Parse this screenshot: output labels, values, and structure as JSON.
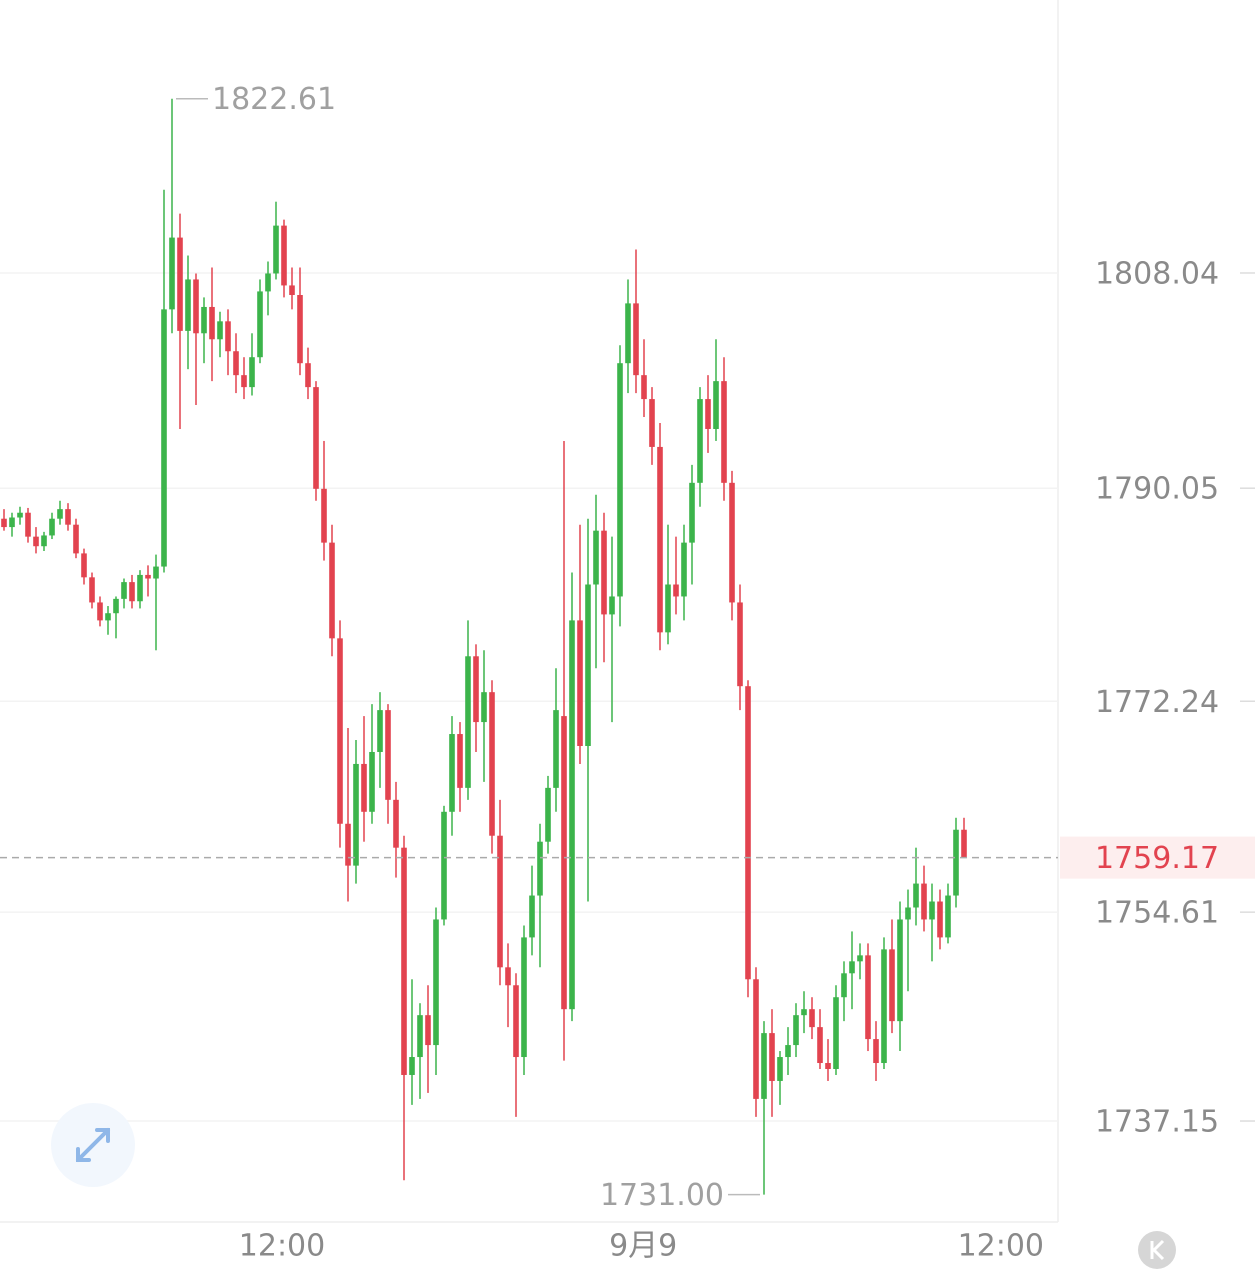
{
  "chart_data": {
    "type": "candlestick",
    "open": [
      1787.5,
      1786.8,
      1787.6,
      1788.0,
      1786.0,
      1785.2,
      1786.1,
      1787.5,
      1788.3,
      1787.0,
      1784.6,
      1782.6,
      1780.5,
      1779.0,
      1779.6,
      1780.8,
      1782.2,
      1780.6,
      1782.8,
      1782.5,
      1783.5,
      1805.0,
      1811.0,
      1803.2,
      1807.5,
      1803.0,
      1805.2,
      1802.5,
      1804.0,
      1801.5,
      1799.5,
      1798.5,
      1801.0,
      1806.5,
      1808.0,
      1812.0,
      1807.0,
      1806.2,
      1800.5,
      1798.5,
      1790.0,
      1785.5,
      1777.5,
      1762.0,
      1758.5,
      1767.0,
      1763.0,
      1768.0,
      1771.5,
      1764.0,
      1760.0,
      1741.0,
      1742.5,
      1746.0,
      1743.5,
      1754.0,
      1763.0,
      1769.5,
      1765.0,
      1776.0,
      1770.5,
      1773.0,
      1761.0,
      1750.0,
      1748.5,
      1742.5,
      1752.5,
      1756.0,
      1760.5,
      1765.0,
      1771.0,
      1746.5,
      1779.0,
      1768.5,
      1782.0,
      1786.5,
      1779.5,
      1781.0,
      1800.5,
      1805.5,
      1799.5,
      1797.5,
      1793.5,
      1778.0,
      1782.0,
      1781.0,
      1785.5,
      1790.5,
      1797.5,
      1795.0,
      1799.0,
      1790.5,
      1780.5,
      1773.5,
      1749.0,
      1739.0,
      1744.5,
      1740.5,
      1742.5,
      1743.5,
      1746.0,
      1746.5,
      1745.0,
      1742.0,
      1741.5,
      1747.5,
      1749.5,
      1750.5,
      1751.0,
      1744.0,
      1742.0,
      1751.5,
      1745.5,
      1754.0,
      1755.0,
      1757.0,
      1754.0,
      1755.5,
      1752.5,
      1756.0,
      1761.5
    ],
    "high": [
      1788.3,
      1788.0,
      1788.5,
      1788.4,
      1786.8,
      1786.4,
      1788.0,
      1789.0,
      1788.8,
      1787.5,
      1785.0,
      1783.0,
      1781.0,
      1780.2,
      1781.0,
      1782.5,
      1782.8,
      1783.2,
      1783.6,
      1784.5,
      1815.0,
      1822.61,
      1813.0,
      1809.5,
      1808.0,
      1806.0,
      1808.5,
      1804.8,
      1805.0,
      1803.0,
      1801.0,
      1803.0,
      1807.5,
      1809.0,
      1814.0,
      1812.5,
      1808.5,
      1808.5,
      1801.8,
      1799.0,
      1794.0,
      1787.0,
      1779.0,
      1770.0,
      1769.0,
      1771.0,
      1772.0,
      1773.0,
      1772.0,
      1765.5,
      1761.0,
      1749.0,
      1747.0,
      1748.5,
      1755.0,
      1763.5,
      1771.0,
      1770.5,
      1779.0,
      1777.0,
      1776.5,
      1774.0,
      1764.0,
      1752.0,
      1749.5,
      1753.5,
      1758.5,
      1762.0,
      1766.0,
      1775.0,
      1794.0,
      1783.0,
      1787.0,
      1787.5,
      1789.5,
      1788.0,
      1786.0,
      1802.0,
      1807.5,
      1810.0,
      1802.5,
      1798.5,
      1795.5,
      1787.0,
      1786.0,
      1787.0,
      1792.0,
      1798.5,
      1799.5,
      1802.5,
      1801.0,
      1791.5,
      1782.0,
      1774.0,
      1750.0,
      1745.5,
      1746.5,
      1743.0,
      1745.0,
      1747.0,
      1748.0,
      1747.5,
      1746.5,
      1744.0,
      1748.5,
      1750.5,
      1753.0,
      1752.0,
      1752.0,
      1745.5,
      1752.5,
      1754.0,
      1755.5,
      1756.5,
      1760.0,
      1758.5,
      1757.0,
      1756.5,
      1757.0,
      1762.5,
      1762.5
    ],
    "low": [
      1786.5,
      1786.0,
      1787.0,
      1785.5,
      1784.6,
      1784.8,
      1785.8,
      1787.0,
      1786.5,
      1784.2,
      1782.0,
      1780.0,
      1778.5,
      1777.8,
      1777.5,
      1780.0,
      1780.0,
      1780.0,
      1781.0,
      1776.5,
      1783.0,
      1803.0,
      1795.0,
      1800.0,
      1797.0,
      1800.5,
      1799.0,
      1801.0,
      1799.5,
      1798.0,
      1797.5,
      1797.8,
      1800.5,
      1804.5,
      1807.5,
      1806.0,
      1805.0,
      1799.5,
      1797.5,
      1789.0,
      1784.0,
      1776.0,
      1760.0,
      1755.5,
      1757.0,
      1760.5,
      1762.0,
      1765.0,
      1762.0,
      1757.5,
      1732.2,
      1738.5,
      1739.0,
      1739.5,
      1741.0,
      1753.5,
      1761.0,
      1763.0,
      1764.0,
      1768.0,
      1765.5,
      1759.5,
      1748.5,
      1745.0,
      1737.5,
      1741.0,
      1751.0,
      1750.0,
      1759.5,
      1763.0,
      1742.2,
      1745.5,
      1767.0,
      1755.5,
      1775.0,
      1775.5,
      1770.5,
      1778.5,
      1798.0,
      1798.0,
      1796.0,
      1792.0,
      1776.5,
      1777.0,
      1779.5,
      1779.0,
      1782.0,
      1788.5,
      1793.0,
      1794.0,
      1789.0,
      1779.0,
      1771.5,
      1747.5,
      1737.5,
      1731,
      1737.5,
      1738.5,
      1741.0,
      1742.5,
      1744.5,
      1744.0,
      1741.5,
      1740.5,
      1741.0,
      1745.5,
      1746.5,
      1749.0,
      1743.0,
      1740.5,
      1741.5,
      1744.5,
      1743.0,
      1748.0,
      1753.5,
      1753.0,
      1750.5,
      1751.5,
      1752.0,
      1755.0,
      1759.17
    ],
    "close": [
      1786.8,
      1787.6,
      1788.0,
      1786.0,
      1785.2,
      1786.1,
      1787.5,
      1788.3,
      1787.0,
      1784.6,
      1782.6,
      1780.5,
      1779.0,
      1779.6,
      1780.8,
      1782.2,
      1780.6,
      1782.8,
      1782.5,
      1783.5,
      1805.0,
      1811.0,
      1803.2,
      1807.5,
      1803.0,
      1805.2,
      1802.5,
      1804.0,
      1801.5,
      1799.5,
      1798.5,
      1801.0,
      1806.5,
      1808.0,
      1812.0,
      1807.0,
      1806.2,
      1800.5,
      1798.5,
      1790.0,
      1785.5,
      1777.5,
      1762.0,
      1758.5,
      1767.0,
      1763.0,
      1768.0,
      1771.5,
      1764.0,
      1760.0,
      1741.0,
      1742.5,
      1746.0,
      1743.5,
      1754.0,
      1763.0,
      1769.5,
      1765.0,
      1776.0,
      1770.5,
      1773.0,
      1761.0,
      1750.0,
      1748.5,
      1742.5,
      1752.5,
      1756.0,
      1760.5,
      1765.0,
      1771.5,
      1746.5,
      1779.0,
      1768.5,
      1782.0,
      1786.5,
      1779.5,
      1781.0,
      1800.5,
      1805.5,
      1799.5,
      1797.5,
      1793.5,
      1778.0,
      1782.0,
      1781.0,
      1785.5,
      1790.5,
      1797.5,
      1795.0,
      1799.0,
      1790.5,
      1780.5,
      1773.5,
      1749.0,
      1739.0,
      1744.5,
      1740.5,
      1742.5,
      1743.5,
      1746.0,
      1746.5,
      1745.0,
      1742.0,
      1741.5,
      1747.5,
      1749.5,
      1750.5,
      1751.0,
      1744.0,
      1742.0,
      1751.5,
      1745.5,
      1754.0,
      1755.0,
      1757.0,
      1754.0,
      1755.5,
      1752.5,
      1756.0,
      1761.5,
      1759.17
    ],
    "up_color": "#3cb44b",
    "down_color": "#e2434f",
    "xlim": [
      -0.5,
      131.75
    ],
    "xticks": [
      {
        "value": 34.75,
        "label": "12:00"
      },
      {
        "value": 79.9,
        "label": "9月9"
      },
      {
        "value": 124.6,
        "label": "12:00"
      }
    ],
    "ylim": [
      1728.71,
      1830.86
    ],
    "yticks": [
      1808.04,
      1790.05,
      1772.24,
      1754.61,
      1737.15
    ],
    "grid": true,
    "extremes": [
      {
        "value": 1822.61,
        "label": "1822.61"
      },
      {
        "value": 1731,
        "label": "1731.00"
      }
    ],
    "last_price": {
      "value": 1759.17,
      "label": "1759.17"
    }
  }
}
